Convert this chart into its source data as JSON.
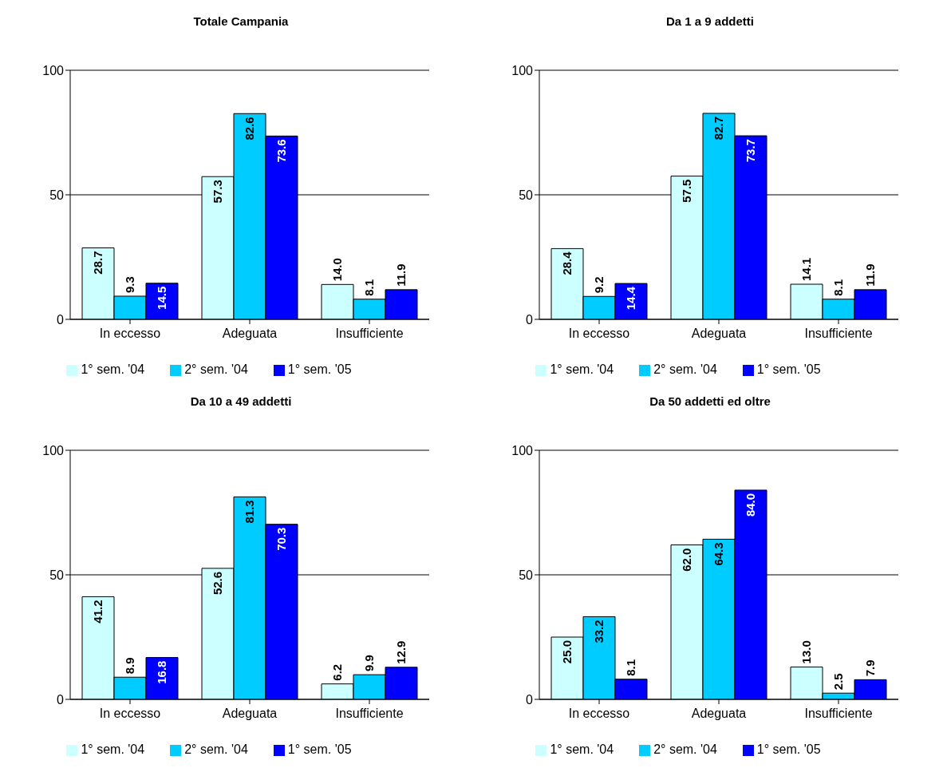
{
  "chart_data": [
    {
      "type": "bar",
      "title": "Totale Campania",
      "categories": [
        "In eccesso",
        "Adeguata",
        "Insufficiente"
      ],
      "series": [
        {
          "name": "1° sem. '04",
          "color": "#ccffff",
          "values": [
            28.7,
            57.3,
            14.0
          ],
          "value_labels": [
            "28.7",
            "57.3",
            "14.0"
          ]
        },
        {
          "name": "2° sem. '04",
          "color": "#00ccff",
          "values": [
            9.3,
            82.6,
            8.1
          ],
          "value_labels": [
            "9.3",
            "82.6",
            "8.1"
          ]
        },
        {
          "name": "1° sem. '05",
          "color": "#0000ff",
          "values": [
            14.5,
            73.6,
            11.9
          ],
          "value_labels": [
            "14.5",
            "73.6",
            "11.9"
          ]
        }
      ],
      "ylim": [
        0,
        100
      ],
      "yticks": [
        0,
        50,
        100
      ],
      "grid": "y",
      "legend": "bottom"
    },
    {
      "type": "bar",
      "title": "Da 1 a  9 addetti",
      "categories": [
        "In eccesso",
        "Adeguata",
        "Insufficiente"
      ],
      "series": [
        {
          "name": "1° sem. '04",
          "color": "#ccffff",
          "values": [
            28.4,
            57.5,
            14.1
          ],
          "value_labels": [
            "28.4",
            "57.5",
            "14.1"
          ]
        },
        {
          "name": "2° sem. '04",
          "color": "#00ccff",
          "values": [
            9.2,
            82.7,
            8.1
          ],
          "value_labels": [
            "9.2",
            "82.7",
            "8.1"
          ]
        },
        {
          "name": "1° sem. '05",
          "color": "#0000ff",
          "values": [
            14.4,
            73.7,
            11.9
          ],
          "value_labels": [
            "14.4",
            "73.7",
            "11.9"
          ]
        }
      ],
      "ylim": [
        0,
        100
      ],
      "yticks": [
        0,
        50,
        100
      ],
      "grid": "y",
      "legend": "bottom"
    },
    {
      "type": "bar",
      "title": "Da 10 a 49 addetti",
      "categories": [
        "In eccesso",
        "Adeguata",
        "Insufficiente"
      ],
      "series": [
        {
          "name": "1° sem. '04",
          "color": "#ccffff",
          "values": [
            41.2,
            52.6,
            6.2
          ],
          "value_labels": [
            "41.2",
            "52.6",
            "6.2"
          ]
        },
        {
          "name": "2° sem. '04",
          "color": "#00ccff",
          "values": [
            8.9,
            81.3,
            9.9
          ],
          "value_labels": [
            "8.9",
            "81.3",
            "9.9"
          ]
        },
        {
          "name": "1° sem. '05",
          "color": "#0000ff",
          "values": [
            16.8,
            70.3,
            12.9
          ],
          "value_labels": [
            "16.8",
            "70.3",
            "12.9"
          ]
        }
      ],
      "ylim": [
        0,
        100
      ],
      "yticks": [
        0,
        50,
        100
      ],
      "grid": "y",
      "legend": "bottom"
    },
    {
      "type": "bar",
      "title": "Da 50 addetti ed oltre",
      "categories": [
        "In eccesso",
        "Adeguata",
        "Insufficiente"
      ],
      "series": [
        {
          "name": "1° sem. '04",
          "color": "#ccffff",
          "values": [
            25.0,
            62.0,
            13.0
          ],
          "value_labels": [
            "25.0",
            "62.0",
            "13.0"
          ]
        },
        {
          "name": "2° sem. '04",
          "color": "#00ccff",
          "values": [
            33.2,
            64.3,
            2.5
          ],
          "value_labels": [
            "33.2",
            "64.3",
            "2.5"
          ]
        },
        {
          "name": "1° sem. '05",
          "color": "#0000ff",
          "values": [
            8.1,
            84.0,
            7.9
          ],
          "value_labels": [
            "8.1",
            "84.0",
            "7.9"
          ]
        }
      ],
      "ylim": [
        0,
        100
      ],
      "yticks": [
        0,
        50,
        100
      ],
      "grid": "y",
      "legend": "bottom"
    }
  ]
}
